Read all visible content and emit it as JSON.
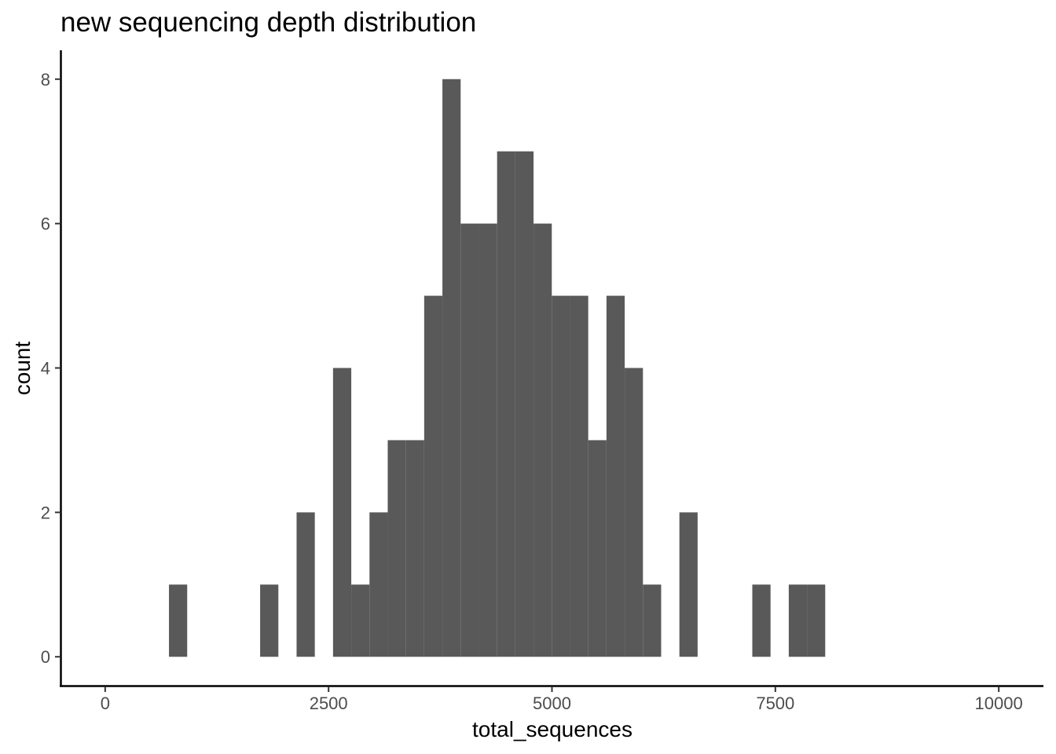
{
  "chart_data": {
    "type": "bar",
    "title": "new sequencing depth distribution",
    "xlabel": "total_sequences",
    "ylabel": "count",
    "xlim": [
      -500,
      10500
    ],
    "ylim": [
      -0.4,
      8.4
    ],
    "x_ticks": [
      0,
      2500,
      5000,
      7500,
      10000
    ],
    "x_tick_labels": [
      "0",
      "2500",
      "5000",
      "7500",
      "10000"
    ],
    "y_ticks": [
      0,
      2,
      4,
      6,
      8
    ],
    "y_tick_labels": [
      "0",
      "2",
      "4",
      "6",
      "8"
    ],
    "bin_width": 204,
    "bar_color": "#595959",
    "grid": false,
    "bins": [
      {
        "x": 816,
        "count": 1
      },
      {
        "x": 1836,
        "count": 1
      },
      {
        "x": 2244,
        "count": 2
      },
      {
        "x": 2652,
        "count": 4
      },
      {
        "x": 2856,
        "count": 1
      },
      {
        "x": 3060,
        "count": 2
      },
      {
        "x": 3264,
        "count": 3
      },
      {
        "x": 3468,
        "count": 3
      },
      {
        "x": 3672,
        "count": 5
      },
      {
        "x": 3876,
        "count": 8
      },
      {
        "x": 4080,
        "count": 6
      },
      {
        "x": 4284,
        "count": 6
      },
      {
        "x": 4488,
        "count": 7
      },
      {
        "x": 4692,
        "count": 7
      },
      {
        "x": 4896,
        "count": 6
      },
      {
        "x": 5100,
        "count": 5
      },
      {
        "x": 5304,
        "count": 5
      },
      {
        "x": 5508,
        "count": 3
      },
      {
        "x": 5712,
        "count": 5
      },
      {
        "x": 5916,
        "count": 4
      },
      {
        "x": 6120,
        "count": 1
      },
      {
        "x": 6528,
        "count": 2
      },
      {
        "x": 7344,
        "count": 1
      },
      {
        "x": 7752,
        "count": 1
      },
      {
        "x": 7956,
        "count": 1
      }
    ]
  }
}
